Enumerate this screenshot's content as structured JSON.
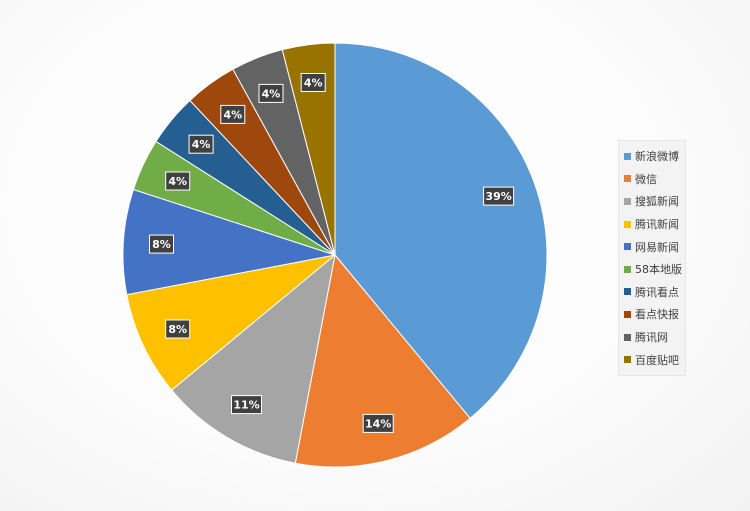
{
  "chart_data": {
    "type": "pie",
    "title": "",
    "legend_position": "right",
    "start_angle_deg": 0,
    "direction": "clockwise",
    "slices": [
      {
        "label": "新浪微博",
        "value": 39,
        "display": "39%",
        "color": "#5B9BD5"
      },
      {
        "label": "微信",
        "value": 14,
        "display": "14%",
        "color": "#ED7D31"
      },
      {
        "label": "搜狐新闻",
        "value": 11,
        "display": "11%",
        "color": "#A5A5A5"
      },
      {
        "label": "腾讯新闻",
        "value": 8,
        "display": "8%",
        "color": "#FFC000"
      },
      {
        "label": "网易新闻",
        "value": 8,
        "display": "8%",
        "color": "#4472C4"
      },
      {
        "label": "58本地版",
        "value": 4,
        "display": "4%",
        "color": "#70AD47"
      },
      {
        "label": "腾讯看点",
        "value": 4,
        "display": "4%",
        "color": "#255E91"
      },
      {
        "label": "看点快报",
        "value": 4,
        "display": "4%",
        "color": "#9E480E"
      },
      {
        "label": "腾讯网",
        "value": 4,
        "display": "4%",
        "color": "#636363"
      },
      {
        "label": "百度贴吧",
        "value": 4,
        "display": "4%",
        "color": "#997300"
      }
    ]
  }
}
